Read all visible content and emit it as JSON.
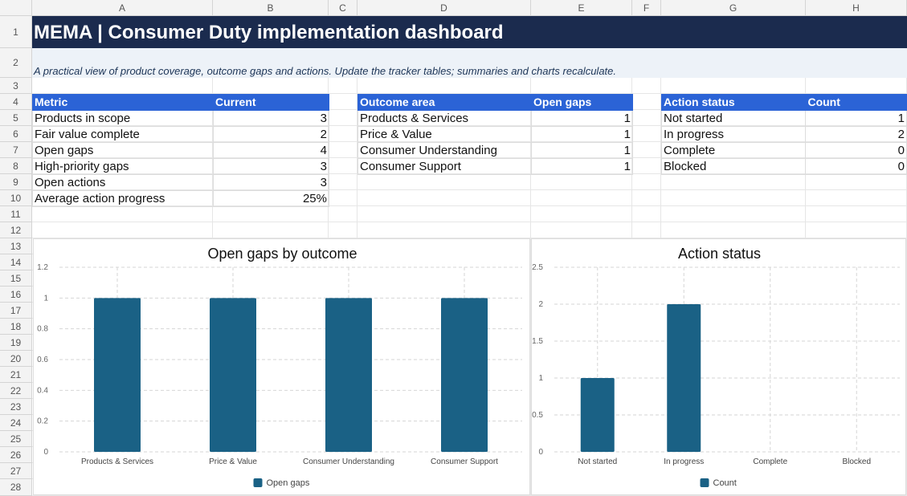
{
  "columns": [
    "A",
    "B",
    "C",
    "D",
    "E",
    "F",
    "G",
    "H"
  ],
  "rows": [
    "1",
    "2",
    "3",
    "4",
    "5",
    "6",
    "7",
    "8",
    "9",
    "10",
    "11",
    "12",
    "13",
    "14",
    "15",
    "16",
    "17",
    "18",
    "19",
    "20",
    "21",
    "22",
    "23",
    "24",
    "25",
    "26",
    "27",
    "28"
  ],
  "title": "MEMA | Consumer Duty implementation dashboard",
  "subtitle": "A practical view of product coverage, outcome gaps and actions. Update the tracker tables; summaries and charts recalculate.",
  "metrics": {
    "headers": [
      "Metric",
      "Current"
    ],
    "rows": [
      [
        "Products in scope",
        "3"
      ],
      [
        "Fair value complete",
        "2"
      ],
      [
        "Open gaps",
        "4"
      ],
      [
        "High-priority gaps",
        "3"
      ],
      [
        "Open actions",
        "3"
      ],
      [
        "Average action progress",
        "25%"
      ]
    ]
  },
  "outcomes": {
    "headers": [
      "Outcome area",
      "Open gaps"
    ],
    "rows": [
      [
        "Products & Services",
        "1"
      ],
      [
        "Price & Value",
        "1"
      ],
      [
        "Consumer Understanding",
        "1"
      ],
      [
        "Consumer Support",
        "1"
      ]
    ]
  },
  "actions": {
    "headers": [
      "Action status",
      "Count"
    ],
    "rows": [
      [
        "Not started",
        "1"
      ],
      [
        "In progress",
        "2"
      ],
      [
        "Complete",
        "0"
      ],
      [
        "Blocked",
        "0"
      ]
    ]
  },
  "colors": {
    "bar": "#1a6185",
    "header": "#2b63d6",
    "title_band": "#1b2b4e"
  },
  "chart_data": [
    {
      "type": "bar",
      "title": "Open gaps by outcome",
      "categories": [
        "Products & Services",
        "Price & Value",
        "Consumer Understanding",
        "Consumer Support"
      ],
      "series": [
        {
          "name": "Open gaps",
          "values": [
            1,
            1,
            1,
            1
          ]
        }
      ],
      "ylim": [
        0,
        1.2
      ],
      "yticks": [
        "0",
        "0.2",
        "0.4",
        "0.6",
        "0.8",
        "1",
        "1.2"
      ],
      "grid": true,
      "legend": "bottom"
    },
    {
      "type": "bar",
      "title": "Action status",
      "categories": [
        "Not started",
        "In progress",
        "Complete",
        "Blocked"
      ],
      "series": [
        {
          "name": "Count",
          "values": [
            1,
            2,
            0,
            0
          ]
        }
      ],
      "ylim": [
        0,
        2.5
      ],
      "yticks": [
        "0",
        "0.5",
        "1",
        "1.5",
        "2",
        "2.5"
      ],
      "grid": true,
      "legend": "bottom"
    }
  ]
}
